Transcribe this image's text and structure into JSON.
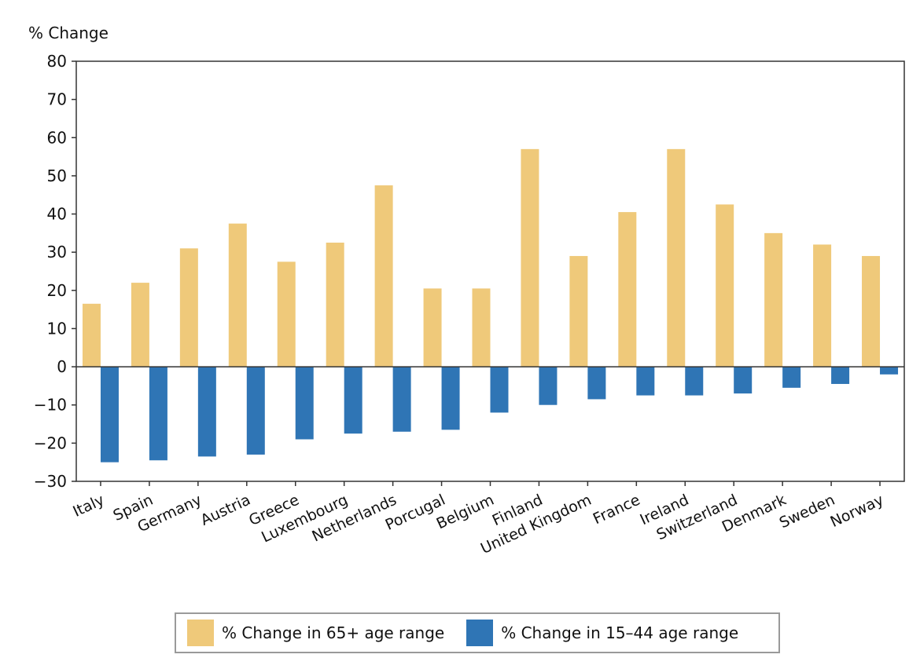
{
  "chart_data": {
    "type": "bar",
    "ylabel": "% Change",
    "ylim": [
      -30,
      80
    ],
    "yticks": [
      80,
      70,
      60,
      50,
      40,
      30,
      20,
      10,
      0,
      -10,
      -20,
      -30
    ],
    "categories": [
      "Italy",
      "Spain",
      "Germany",
      "Austria",
      "Greece",
      "Luxembourg",
      "Netherlands",
      "Porcugal",
      "Belgium",
      "Finland",
      "United Kingdom",
      "France",
      "Ireland",
      "Switzerland",
      "Denmark",
      "Sweden",
      "Norway"
    ],
    "series": [
      {
        "name": "% Change in 65+ age range",
        "color": "#efc97a",
        "values": [
          16.5,
          22,
          31,
          37.5,
          27.5,
          32.5,
          47.5,
          20.5,
          20.5,
          57,
          29,
          40.5,
          57,
          42.5,
          35,
          32,
          29
        ]
      },
      {
        "name": "% Change in 15–44 age range",
        "color": "#2f75b5",
        "values": [
          -25,
          -24.5,
          -23.5,
          -23,
          -19,
          -17.5,
          -17,
          -16.5,
          -12,
          -10,
          -8.5,
          -7.5,
          -7.5,
          -7,
          -5.5,
          -4.5,
          -2
        ]
      }
    ],
    "grid": false,
    "legend": "bottom"
  }
}
